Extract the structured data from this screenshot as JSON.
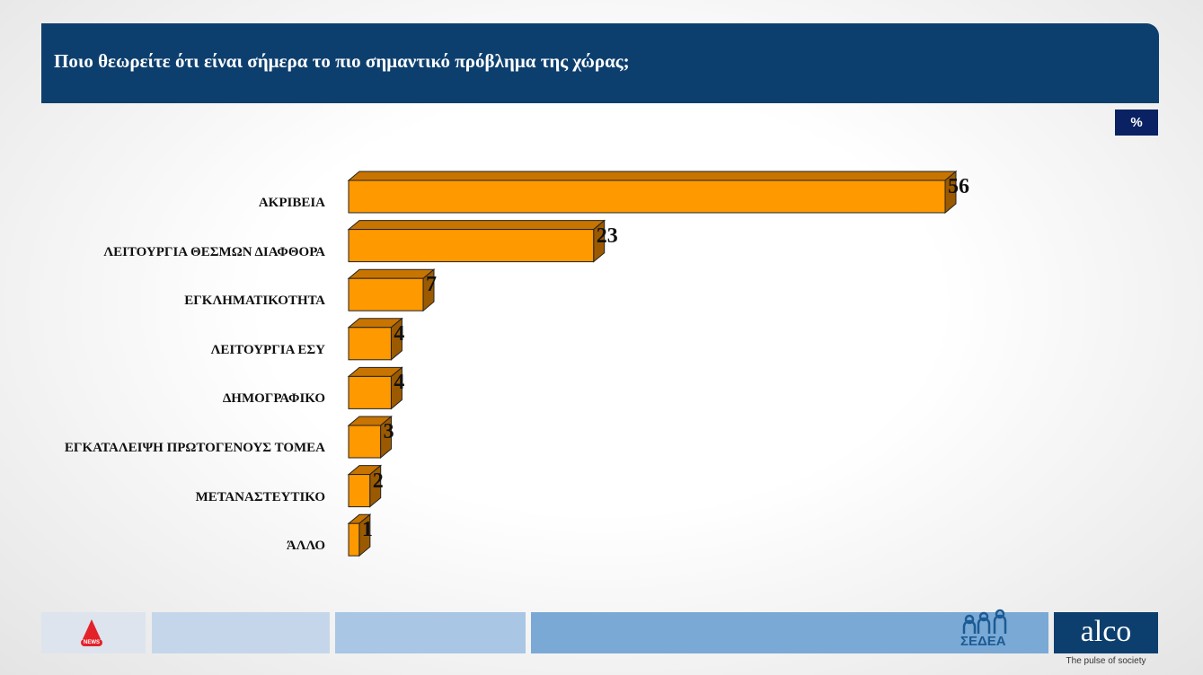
{
  "chart_data": {
    "type": "bar",
    "orientation": "horizontal",
    "title": "Ποιο θεωρείτε ότι είναι σήμερα το πιο σημαντικό πρόβλημα της χώρας;",
    "unit_label": "%",
    "categories": [
      "ΑΚΡΙΒΕΙΑ",
      "ΛΕΙΤΟΥΡΓΙΑ ΘΕΣΜΩΝ ΔΙΑΦΘΟΡΑ",
      "ΕΓΚΛΗΜΑΤΙΚΟΤΗΤΑ",
      "ΛΕΙΤΟΥΡΓΙΑ ΕΣΥ",
      "ΔΗΜΟΓΡΑΦΙΚΟ",
      "ΕΓΚΑΤΑΛΕΙΨΗ ΠΡΩΤΟΓΕΝΟΥΣ ΤΟΜΕΑ",
      "ΜΕΤΑΝΑΣΤΕΥΤΙΚΟ",
      "ΆΛΛΟ"
    ],
    "values": [
      56,
      23,
      7,
      4,
      4,
      3,
      2,
      1
    ],
    "color": "#ff9900"
  },
  "footer": {
    "news_logo": "NEWS",
    "sedea_logo": "ΣΕΔΕΑ",
    "alco_logo": "alco",
    "alco_tagline": "The pulse of society"
  }
}
